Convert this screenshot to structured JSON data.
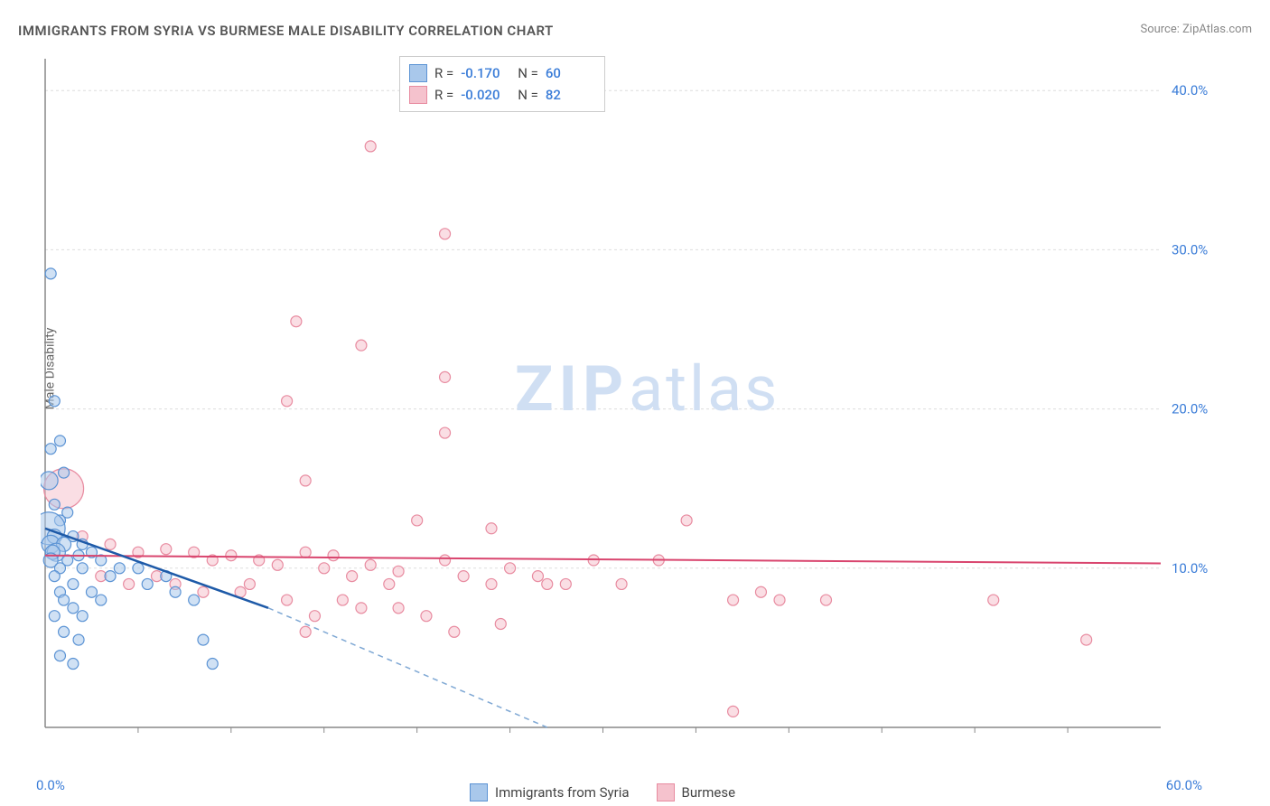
{
  "title": "IMMIGRANTS FROM SYRIA VS BURMESE MALE DISABILITY CORRELATION CHART",
  "source": "Source: ZipAtlas.com",
  "ylabel": "Male Disability",
  "watermark_zip": "ZIP",
  "watermark_atlas": "atlas",
  "chart": {
    "type": "scatter",
    "xlim": [
      0,
      60
    ],
    "ylim": [
      0,
      42
    ],
    "ytick_values": [
      10,
      20,
      30,
      40
    ],
    "ytick_labels": [
      "10.0%",
      "20.0%",
      "30.0%",
      "40.0%"
    ],
    "xtick_values": [
      0,
      60
    ],
    "xtick_labels": [
      "0.0%",
      "60.0%"
    ],
    "xtick_minor": [
      5,
      10,
      15,
      20,
      25,
      30,
      35,
      40,
      45,
      50,
      55
    ],
    "grid_color": "#dddddd",
    "axis_color": "#888888",
    "background_color": "#ffffff"
  },
  "series": [
    {
      "name": "Immigrants from Syria",
      "fill_color": "#a9c8eb",
      "stroke_color": "#5b93d4",
      "line_color": "#1e5aa8",
      "dash_line_color": "#7fa8d4",
      "R": "-0.170",
      "N": "60",
      "trend_start": [
        0,
        12.5
      ],
      "trend_end": [
        12,
        7.5
      ],
      "trend_dash_end": [
        27,
        0
      ],
      "points": [
        [
          0.3,
          28.5,
          6
        ],
        [
          0.5,
          20.5,
          6
        ],
        [
          0.8,
          18.0,
          6
        ],
        [
          0.3,
          17.5,
          6
        ],
        [
          1.0,
          16.0,
          6
        ],
        [
          0.2,
          15.5,
          10
        ],
        [
          0.5,
          14.0,
          6
        ],
        [
          1.2,
          13.5,
          6
        ],
        [
          0.8,
          13.0,
          6
        ],
        [
          0.2,
          12.5,
          18
        ],
        [
          0.5,
          12.0,
          8
        ],
        [
          1.5,
          12.0,
          6
        ],
        [
          0.3,
          11.5,
          10
        ],
        [
          1.0,
          11.5,
          8
        ],
        [
          0.6,
          11.0,
          10
        ],
        [
          2.0,
          11.5,
          6
        ],
        [
          0.4,
          11.0,
          8
        ],
        [
          1.8,
          10.8,
          6
        ],
        [
          2.5,
          11.0,
          6
        ],
        [
          0.3,
          10.5,
          8
        ],
        [
          1.2,
          10.5,
          6
        ],
        [
          0.8,
          10.0,
          6
        ],
        [
          2.0,
          10.0,
          6
        ],
        [
          3.0,
          10.5,
          6
        ],
        [
          0.5,
          9.5,
          6
        ],
        [
          1.5,
          9.0,
          6
        ],
        [
          3.5,
          9.5,
          6
        ],
        [
          4.0,
          10.0,
          6
        ],
        [
          5.0,
          10.0,
          6
        ],
        [
          0.8,
          8.5,
          6
        ],
        [
          2.5,
          8.5,
          6
        ],
        [
          5.5,
          9.0,
          6
        ],
        [
          6.5,
          9.5,
          6
        ],
        [
          1.0,
          8.0,
          6
        ],
        [
          1.5,
          7.5,
          6
        ],
        [
          3.0,
          8.0,
          6
        ],
        [
          7.0,
          8.5,
          6
        ],
        [
          8.0,
          8.0,
          6
        ],
        [
          0.5,
          7.0,
          6
        ],
        [
          2.0,
          7.0,
          6
        ],
        [
          1.0,
          6.0,
          6
        ],
        [
          1.8,
          5.5,
          6
        ],
        [
          8.5,
          5.5,
          6
        ],
        [
          0.8,
          4.5,
          6
        ],
        [
          1.5,
          4.0,
          6
        ],
        [
          9.0,
          4.0,
          6
        ]
      ]
    },
    {
      "name": "Burmese",
      "fill_color": "#f5c2cd",
      "stroke_color": "#e88ba0",
      "line_color": "#d9456e",
      "R": "-0.020",
      "N": "82",
      "trend_start": [
        0,
        10.8
      ],
      "trend_end": [
        60,
        10.3
      ],
      "points": [
        [
          17.5,
          36.5,
          6
        ],
        [
          21.5,
          31.0,
          6
        ],
        [
          13.5,
          25.5,
          6
        ],
        [
          17.0,
          24.0,
          6
        ],
        [
          21.5,
          22.0,
          6
        ],
        [
          13.0,
          20.5,
          6
        ],
        [
          21.5,
          18.5,
          6
        ],
        [
          1.0,
          15.0,
          22
        ],
        [
          14.0,
          15.5,
          6
        ],
        [
          20.0,
          13.0,
          6
        ],
        [
          24.0,
          12.5,
          6
        ],
        [
          34.5,
          13.0,
          6
        ],
        [
          2.0,
          12.0,
          6
        ],
        [
          3.5,
          11.5,
          6
        ],
        [
          5.0,
          11.0,
          6
        ],
        [
          6.5,
          11.2,
          6
        ],
        [
          8.0,
          11.0,
          6
        ],
        [
          9.0,
          10.5,
          6
        ],
        [
          10.0,
          10.8,
          6
        ],
        [
          11.5,
          10.5,
          6
        ],
        [
          12.5,
          10.2,
          6
        ],
        [
          14.0,
          11.0,
          6
        ],
        [
          15.0,
          10.0,
          6
        ],
        [
          15.5,
          10.8,
          6
        ],
        [
          16.5,
          9.5,
          6
        ],
        [
          17.5,
          10.2,
          6
        ],
        [
          18.5,
          9.0,
          6
        ],
        [
          19.0,
          9.8,
          6
        ],
        [
          21.5,
          10.5,
          6
        ],
        [
          22.5,
          9.5,
          6
        ],
        [
          24.0,
          9.0,
          6
        ],
        [
          25.0,
          10.0,
          6
        ],
        [
          26.5,
          9.5,
          6
        ],
        [
          28.0,
          9.0,
          6
        ],
        [
          29.5,
          10.5,
          6
        ],
        [
          31.0,
          9.0,
          6
        ],
        [
          33.0,
          10.5,
          6
        ],
        [
          37.0,
          8.0,
          6
        ],
        [
          38.5,
          8.5,
          6
        ],
        [
          39.5,
          8.0,
          6
        ],
        [
          42.0,
          8.0,
          6
        ],
        [
          51.0,
          8.0,
          6
        ],
        [
          3.0,
          9.5,
          6
        ],
        [
          4.5,
          9.0,
          6
        ],
        [
          6.0,
          9.5,
          6
        ],
        [
          7.0,
          9.0,
          6
        ],
        [
          8.5,
          8.5,
          6
        ],
        [
          10.5,
          8.5,
          6
        ],
        [
          11.0,
          9.0,
          6
        ],
        [
          13.0,
          8.0,
          6
        ],
        [
          14.5,
          7.0,
          6
        ],
        [
          16.0,
          8.0,
          6
        ],
        [
          17.0,
          7.5,
          6
        ],
        [
          19.0,
          7.5,
          6
        ],
        [
          20.5,
          7.0,
          6
        ],
        [
          22.0,
          6.0,
          6
        ],
        [
          24.5,
          6.5,
          6
        ],
        [
          27.0,
          9.0,
          6
        ],
        [
          14.0,
          6.0,
          6
        ],
        [
          37.0,
          1.0,
          6
        ],
        [
          56.0,
          5.5,
          6
        ]
      ]
    }
  ],
  "legend_label_r": "R =",
  "legend_label_n": "N ="
}
